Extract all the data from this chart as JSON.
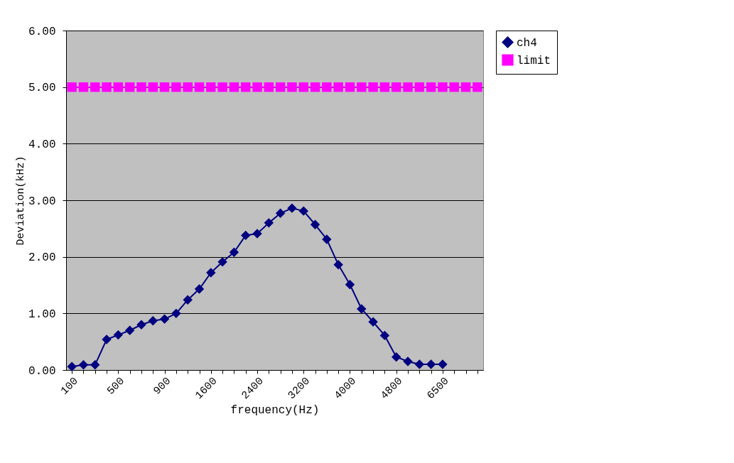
{
  "chart_data": {
    "type": "line",
    "xlabel": "frequency(Hz)",
    "ylabel": "Deviation(kHz)",
    "categories": [
      "100",
      null,
      null,
      null,
      "500",
      null,
      null,
      null,
      "900",
      null,
      null,
      null,
      "1600",
      null,
      null,
      null,
      "2400",
      null,
      null,
      null,
      "3200",
      null,
      null,
      null,
      "4000",
      null,
      null,
      null,
      "4800",
      null,
      null,
      null,
      "6500",
      null,
      null,
      null
    ],
    "series": [
      {
        "name": "ch4",
        "color": "#000080",
        "marker": "diamond",
        "values": [
          0.06,
          0.09,
          0.09,
          0.54,
          0.62,
          0.7,
          0.8,
          0.87,
          0.9,
          1.0,
          1.24,
          1.43,
          1.72,
          1.91,
          2.08,
          2.38,
          2.41,
          2.6,
          2.77,
          2.86,
          2.81,
          2.57,
          2.31,
          1.86,
          1.51,
          1.08,
          0.85,
          0.61,
          0.23,
          0.15,
          0.1,
          0.1,
          0.1,
          null,
          null,
          null
        ]
      },
      {
        "name": "limit",
        "color": "#ff00ff",
        "marker": "square",
        "values": [
          5,
          5,
          5,
          5,
          5,
          5,
          5,
          5,
          5,
          5,
          5,
          5,
          5,
          5,
          5,
          5,
          5,
          5,
          5,
          5,
          5,
          5,
          5,
          5,
          5,
          5,
          5,
          5,
          5,
          5,
          5,
          5,
          5,
          5,
          5,
          5
        ]
      }
    ],
    "ylim": [
      0,
      6
    ],
    "yticks": [
      {
        "value": 0,
        "label": "0.00"
      },
      {
        "value": 1,
        "label": "1.00"
      },
      {
        "value": 2,
        "label": "2.00"
      },
      {
        "value": 3,
        "label": "3.00"
      },
      {
        "value": 4,
        "label": "4.00"
      },
      {
        "value": 5,
        "label": "5.00"
      },
      {
        "value": 6,
        "label": "6.00"
      }
    ],
    "grid": "y",
    "legend": "right",
    "line_style": "solid"
  }
}
